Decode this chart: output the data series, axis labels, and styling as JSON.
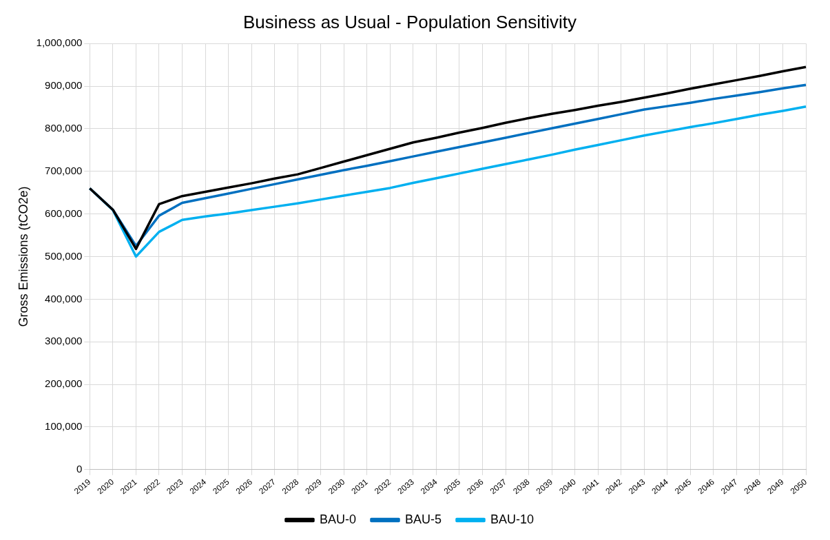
{
  "chart_data": {
    "type": "line",
    "title": "Business as Usual - Population Sensitivity",
    "ylabel": "Gross Emissions (tCO2e)",
    "categories": [
      "2019",
      "2020",
      "2021",
      "2022",
      "2023",
      "2024",
      "2025",
      "2026",
      "2027",
      "2028",
      "2029",
      "2030",
      "2031",
      "2032",
      "2033",
      "2034",
      "2035",
      "2036",
      "2037",
      "2038",
      "2039",
      "2040",
      "2041",
      "2042",
      "2043",
      "2044",
      "2045",
      "2046",
      "2047",
      "2048",
      "2049",
      "2050"
    ],
    "series": [
      {
        "name": "BAU-0",
        "color": "#000000",
        "values": [
          660000,
          610000,
          518000,
          623000,
          642000,
          652000,
          662000,
          672000,
          683000,
          693000,
          708000,
          723000,
          738000,
          753000,
          768000,
          779000,
          791000,
          802000,
          814000,
          825000,
          835000,
          844000,
          854000,
          863000,
          873000,
          883000,
          894000,
          904000,
          914000,
          924000,
          935000,
          945000
        ]
      },
      {
        "name": "BAU-5",
        "color": "#0070c0",
        "values": [
          660000,
          610000,
          525000,
          596000,
          626000,
          637000,
          648000,
          659000,
          670000,
          681000,
          692000,
          703000,
          713000,
          724000,
          735000,
          746000,
          757000,
          768000,
          779000,
          790000,
          801000,
          812000,
          823000,
          834000,
          845000,
          853000,
          861000,
          870000,
          878000,
          886000,
          895000,
          903000
        ]
      },
      {
        "name": "BAU-10",
        "color": "#00b0f0",
        "values": [
          660000,
          609000,
          500000,
          558000,
          586000,
          594000,
          601000,
          609000,
          617000,
          625000,
          634000,
          643000,
          652000,
          661000,
          673000,
          684000,
          695000,
          706000,
          717000,
          728000,
          739000,
          751000,
          762000,
          773000,
          784000,
          794000,
          804000,
          813000,
          823000,
          833000,
          842000,
          852000
        ]
      }
    ],
    "ylim": [
      0,
      1000000
    ],
    "yticks": [
      0,
      {
        "value": 100000,
        "label": "100,000"
      },
      {
        "value": 200000,
        "label": "200,000"
      },
      {
        "value": 300000,
        "label": "300,000"
      },
      {
        "value": 400000,
        "label": "400,000"
      },
      {
        "value": 500000,
        "label": "500,000"
      },
      {
        "value": 600000,
        "label": "600,000"
      },
      {
        "value": 700000,
        "label": "700,000"
      },
      {
        "value": 800000,
        "label": "800,000"
      },
      {
        "value": 900000,
        "label": "900,000"
      },
      {
        "value": 1000000,
        "label": "1,000,000"
      }
    ],
    "grid": true,
    "legend": "bottom",
    "marker": "none",
    "line_style": "solid"
  }
}
